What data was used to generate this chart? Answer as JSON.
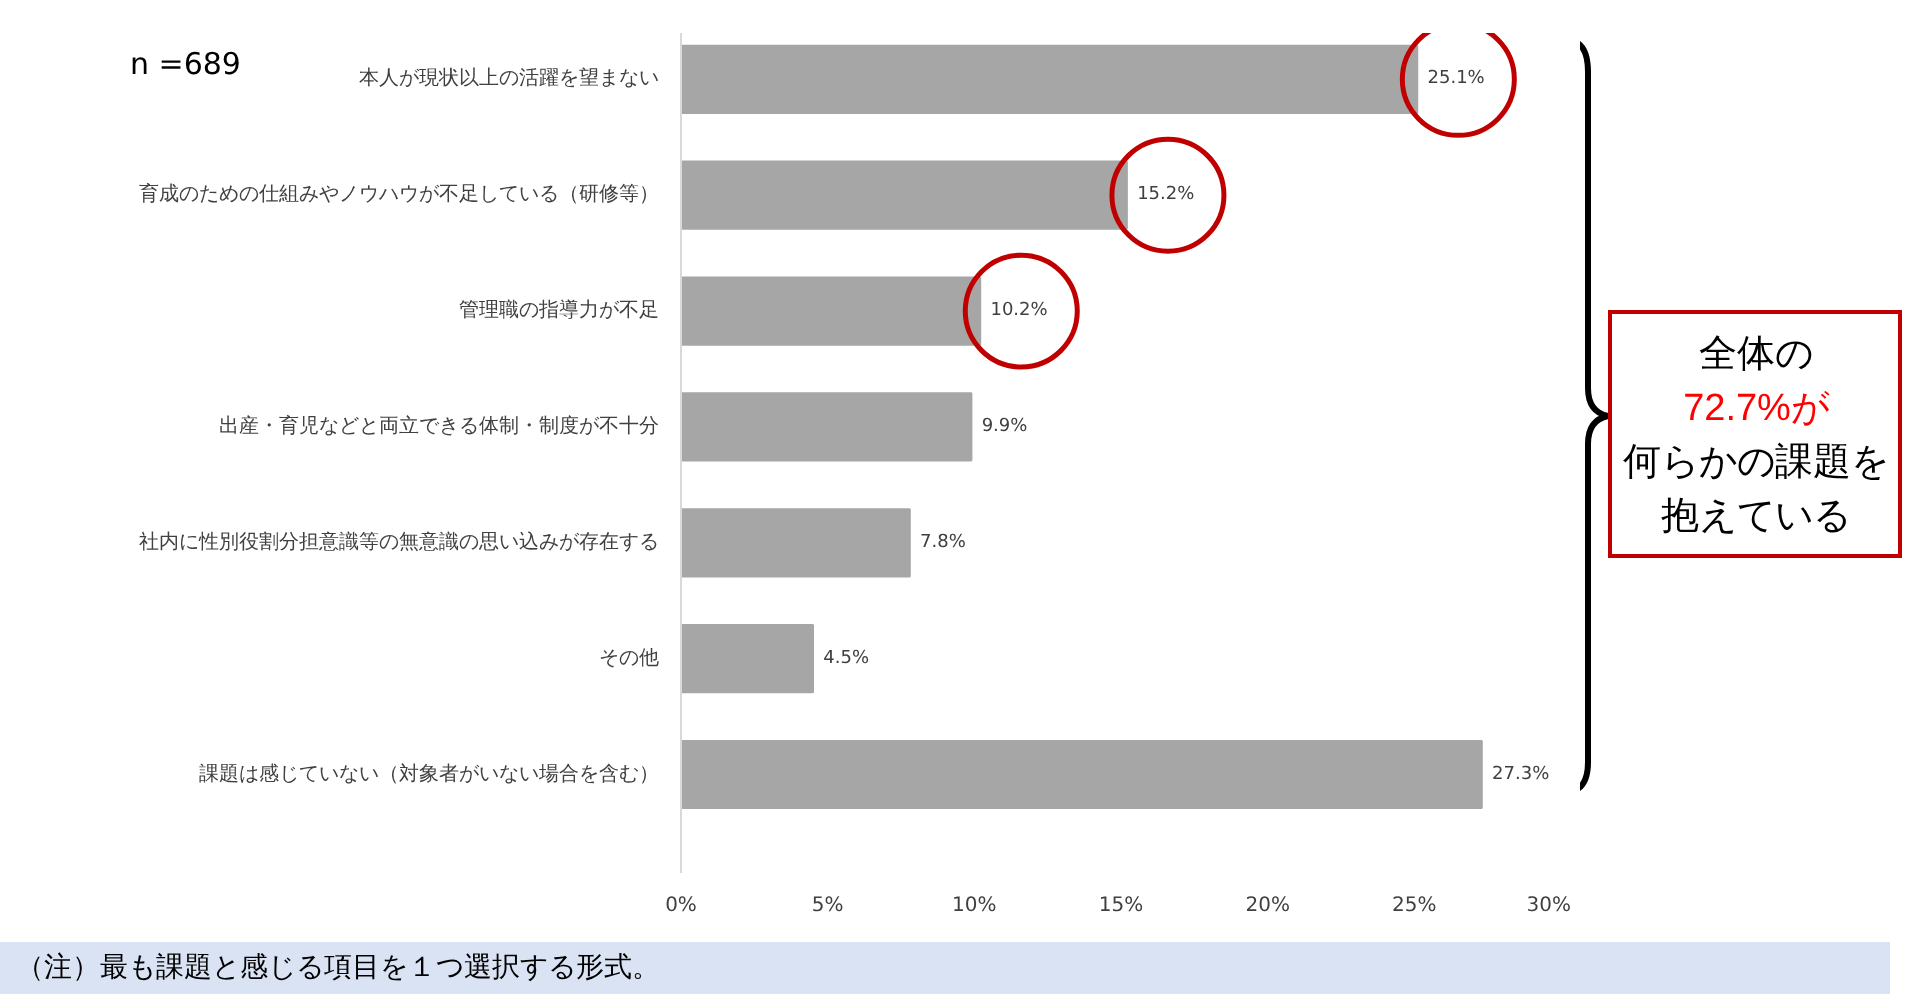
{
  "chart_data": {
    "type": "bar",
    "orientation": "horizontal",
    "categories": [
      "本人が現状以上の活躍を望まない",
      "育成のための仕組みやノウハウが不足している（研修等）",
      "管理職の指導力が不足",
      "出産・育児などと両立できる体制・制度が不十分",
      "社内に性別役割分担意識等の無意識の思い込みが存在する",
      "その他",
      "課題は感じていない（対象者がいない場合を含む）"
    ],
    "values": [
      25.1,
      15.2,
      10.2,
      9.9,
      7.8,
      4.5,
      27.3
    ],
    "value_labels": [
      "25.1%",
      "15.2%",
      "10.2%",
      "9.9%",
      "7.8%",
      "4.5%",
      "27.3%"
    ],
    "color": "#a6a6a6",
    "xlim": [
      0,
      30
    ],
    "xticks": [
      {
        "value": 0,
        "label": "0%"
      },
      {
        "value": 5,
        "label": "5%"
      },
      {
        "value": 10,
        "label": "10%"
      },
      {
        "value": 15,
        "label": "15%"
      },
      {
        "value": 20,
        "label": "20%"
      },
      {
        "value": 25,
        "label": "25%"
      },
      {
        "value": 30,
        "label": "30%"
      }
    ],
    "grid": false,
    "annotations": [
      "n =689",
      "全体の",
      "72.7%が",
      "何らかの課題を",
      "抱えている",
      "（注）最も課題と感じる項目を１つ選択する形式。"
    ]
  }
}
